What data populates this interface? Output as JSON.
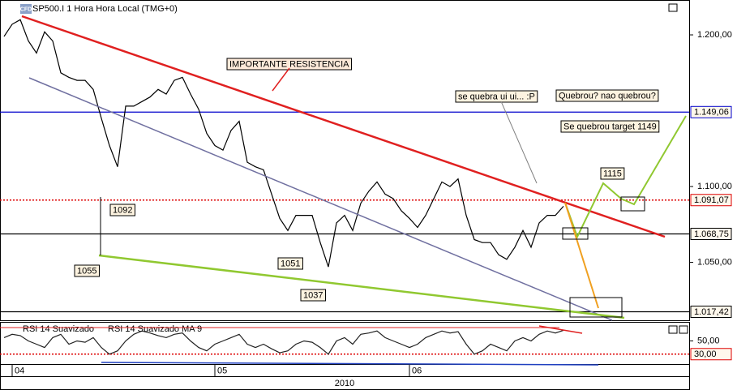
{
  "header": {
    "logo": "CFD",
    "title": "SP500.I 1 Hora Hora Local (TMG+0)"
  },
  "chart_data": [
    {
      "type": "line",
      "color": "#000000",
      "categories": [
        null,
        null,
        null,
        null,
        null,
        null,
        null,
        null,
        null,
        null,
        null,
        null,
        null,
        null,
        null,
        null,
        null,
        null,
        null,
        null,
        null,
        null,
        null,
        null,
        null,
        null,
        null,
        null,
        null,
        null,
        null,
        null,
        null,
        null,
        null,
        null,
        null,
        null,
        null,
        null,
        null,
        null,
        null,
        null,
        null,
        null,
        null,
        null,
        null,
        null,
        null,
        null,
        null,
        null,
        null,
        null,
        null,
        null,
        null,
        null,
        null,
        null,
        null,
        null,
        null,
        null,
        null,
        null,
        null,
        null
      ],
      "values": [
        1199,
        1207,
        1210,
        1196,
        1188,
        1202,
        1196,
        1175,
        1172,
        1170,
        1170,
        1164,
        1145,
        1127,
        1113,
        1153,
        1153,
        1156,
        1159,
        1164,
        1161,
        1170,
        1172,
        1161,
        1151,
        1135,
        1127,
        1124,
        1137,
        1143,
        1116,
        1113,
        1111,
        1095,
        1079,
        1071,
        1081,
        1081,
        1081,
        1063,
        1047,
        1076,
        1081,
        1071,
        1089,
        1097,
        1103,
        1095,
        1092,
        1084,
        1079,
        1073,
        1081,
        1092,
        1103,
        1100,
        1105,
        1081,
        1065,
        1063,
        1063,
        1055,
        1052,
        1060,
        1071,
        1060,
        1076,
        1081,
        1081,
        1087
      ],
      "ylim": [
        1011.8,
        1223
      ],
      "yticks": [
        {
          "value": 1200,
          "label": "1.200,00"
        },
        {
          "value": 1100,
          "label": "1.100,00"
        },
        {
          "value": 1050,
          "label": "1.050,00"
        }
      ],
      "xticks": [
        {
          "value": 1,
          "label": "04"
        },
        {
          "value": 26,
          "label": "05"
        },
        {
          "value": 50,
          "label": "06"
        }
      ],
      "x_group_label": "2010",
      "levels": [
        {
          "value": 1149.06,
          "label": "1.149,06",
          "color": "#0000cc"
        },
        {
          "value": 1091.07,
          "label": "1.091,07",
          "color": "#dd0000"
        },
        {
          "value": 1068.75,
          "label": "1.068,75",
          "color": "#000000"
        },
        {
          "value": 1017.42,
          "label": "1.017,42",
          "color": "#000000"
        }
      ],
      "annotations": [
        "IMPORTANTE RESISTENCIA",
        "se quebra ui ui... :P",
        "Quebrou? nao quebrou?",
        "Se quebrou target 1149",
        "1115",
        "1092",
        "1055",
        "1051",
        "1037"
      ]
    },
    {
      "type": "line",
      "color": "#222222",
      "series_names": [
        "RSI 14 Suavizado",
        "RSI 14 Suavizado MA 9"
      ],
      "values": [
        55,
        60,
        58,
        50,
        45,
        40,
        55,
        60,
        45,
        50,
        48,
        55,
        40,
        30,
        35,
        50,
        60,
        65,
        62,
        58,
        55,
        60,
        62,
        50,
        40,
        35,
        45,
        50,
        55,
        60,
        45,
        40,
        45,
        38,
        32,
        35,
        45,
        50,
        48,
        40,
        30,
        50,
        55,
        45,
        60,
        62,
        65,
        55,
        50,
        45,
        40,
        45,
        55,
        60,
        65,
        62,
        64,
        45,
        30,
        35,
        45,
        40,
        35,
        50,
        55,
        50,
        60,
        65,
        62,
        66
      ],
      "ylim": [
        15,
        78.75
      ],
      "yticks": [
        {
          "value": 50,
          "label": "50,00"
        }
      ],
      "levels": [
        {
          "value": 30,
          "label": "30,00",
          "color": "#dd0000"
        }
      ]
    }
  ]
}
